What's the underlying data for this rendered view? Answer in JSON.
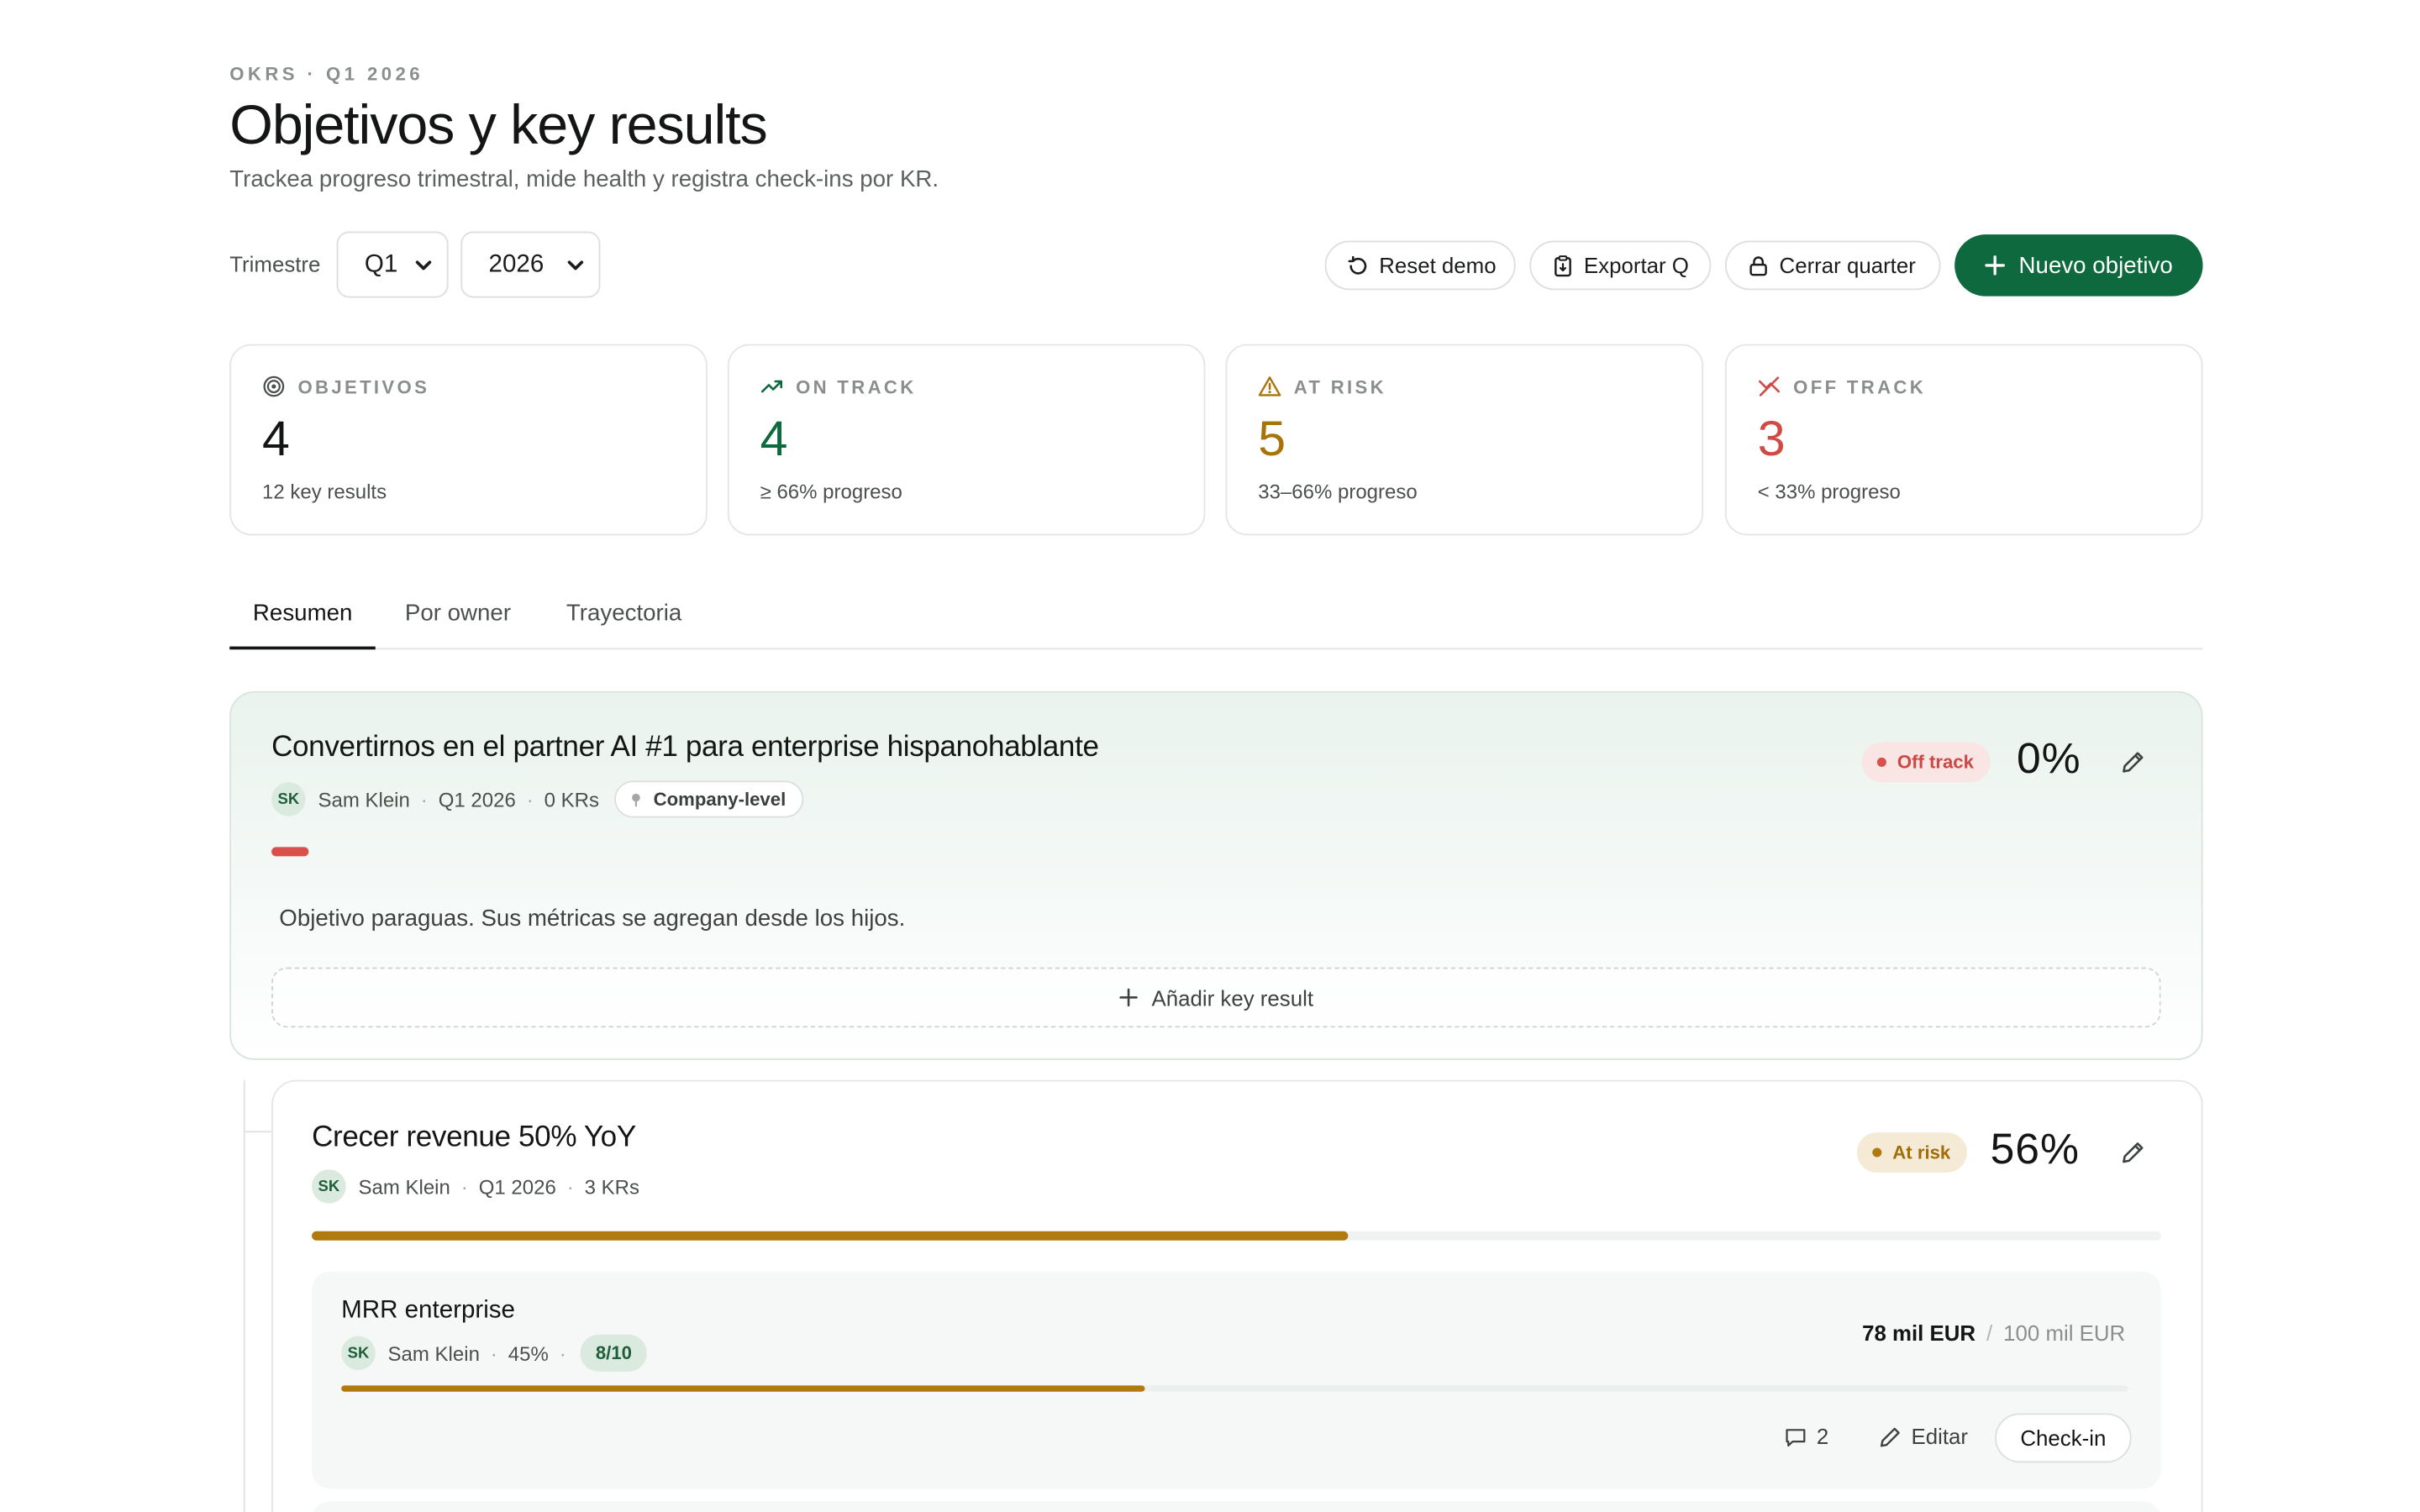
{
  "header": {
    "eyebrow": "OKRS · Q1 2026",
    "title": "Objetivos y key results",
    "subtitle": "Trackea progreso trimestral, mide health y registra check-ins por KR."
  },
  "controls": {
    "quarter_label": "Trimestre",
    "quarter_value": "Q1",
    "year_value": "2026",
    "reset_label": "Reset demo",
    "export_label": "Exportar Q",
    "close_label": "Cerrar quarter",
    "new_label": "Nuevo objetivo"
  },
  "kpis": [
    {
      "label": "OBJETIVOS",
      "value": "4",
      "sub": "12 key results",
      "icon": "target-icon",
      "color": "#141615"
    },
    {
      "label": "ON TRACK",
      "value": "4",
      "sub": "≥ 66% progreso",
      "icon": "trending-up-icon",
      "color": "#0e6a3e"
    },
    {
      "label": "AT RISK",
      "value": "5",
      "sub": "33–66% progreso",
      "icon": "warning-icon",
      "color": "#a87409"
    },
    {
      "label": "OFF TRACK",
      "value": "3",
      "sub": "< 33% progreso",
      "icon": "off-track-icon",
      "color": "#d04b45"
    }
  ],
  "tabs": [
    {
      "label": "Resumen",
      "active": true
    },
    {
      "label": "Por owner",
      "active": false
    },
    {
      "label": "Trayectoria",
      "active": false
    }
  ],
  "objectives": [
    {
      "title": "Convertirnos en el partner AI #1 para enterprise hispanohablante",
      "owner_initials": "SK",
      "owner": "Sam Klein",
      "quarter": "Q1 2026",
      "kr_count": "0 KRs",
      "tag": "Company-level",
      "status": "Off track",
      "percent": "0%",
      "progress": 0.02,
      "description": "Objetivo paraguas. Sus métricas se agregan desde los hijos.",
      "add_kr_label": "Añadir key result"
    },
    {
      "title": "Crecer revenue 50% YoY",
      "owner_initials": "SK",
      "owner": "Sam Klein",
      "quarter": "Q1 2026",
      "kr_count": "3 KRs",
      "status": "At risk",
      "percent": "56%",
      "progress": 0.56,
      "key_results": [
        {
          "title": "MRR enterprise",
          "owner_initials": "SK",
          "owner": "Sam Klein",
          "percent": "45%",
          "score": "8/10",
          "current": "78 mil EUR",
          "target": "100 mil EUR",
          "progress": 0.45,
          "comments": "2",
          "edit_label": "Editar",
          "checkin_label": "Check-in"
        }
      ]
    }
  ],
  "colors": {
    "accent": "#0e6a3e",
    "risk": "#b07a0e",
    "off": "#d9504a"
  }
}
